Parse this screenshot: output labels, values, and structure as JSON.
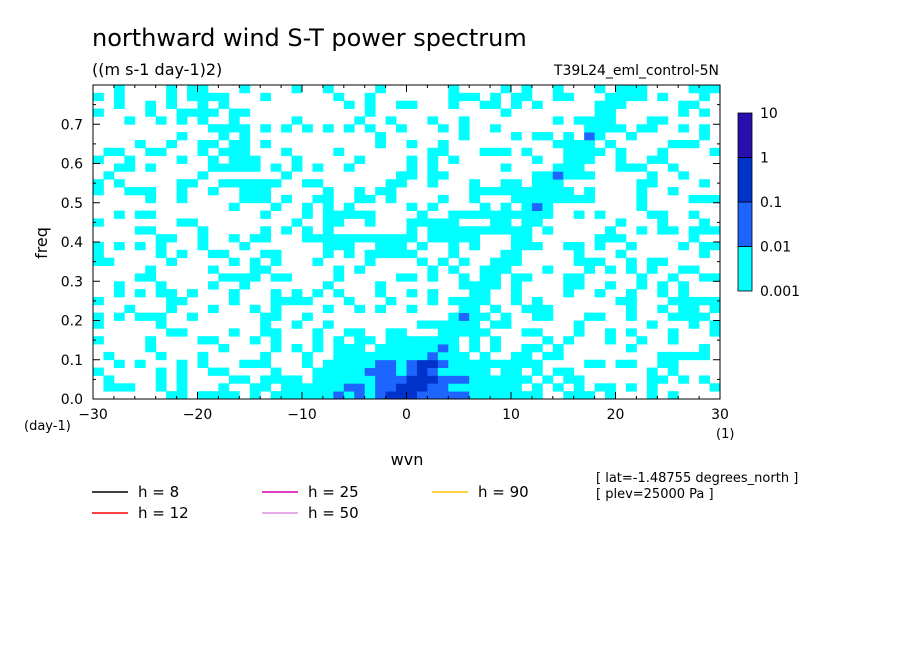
{
  "chart_data": {
    "type": "heatmap",
    "title": "northward wind S-T power spectrum",
    "units": "((m s-1 day-1)2)",
    "run_label": "T39L24_eml_control-5N",
    "xlabel": "wvn",
    "ylabel": "freq",
    "x_unit": "(1)",
    "y_unit": "(day-1)",
    "xlim": [
      -30,
      30
    ],
    "ylim": [
      0,
      0.8
    ],
    "xticks": [
      -30,
      -20,
      -10,
      0,
      10,
      20,
      30
    ],
    "yticks": [
      0.0,
      0.1,
      0.2,
      0.3,
      0.4,
      0.5,
      0.6,
      0.7
    ],
    "ytick_labels": [
      "0.0",
      "0.1",
      "0.2",
      "0.3",
      "0.4",
      "0.5",
      "0.6",
      "0.7"
    ],
    "colorbar": {
      "levels": [
        "0.001",
        "0.01",
        "0.1",
        "1",
        "10"
      ],
      "colors": [
        "#00ffff",
        "#1e64ff",
        "#0033cc",
        "#2a0fb0"
      ]
    },
    "dispersion_curves": [
      {
        "label": "h =  8",
        "h": 8,
        "color": "#000000"
      },
      {
        "label": "h = 12",
        "h": 12,
        "color": "#ff0000"
      },
      {
        "label": "h = 25",
        "h": 25,
        "color": "#d000b0"
      },
      {
        "label": "h = 50",
        "h": 50,
        "color": "#e090e0"
      },
      {
        "label": "h = 90",
        "h": 90,
        "color": "#ffc000"
      }
    ],
    "annotations": [
      "[ lat=-1.48755 degrees_north ]",
      "[ plev=25000 Pa ]"
    ]
  }
}
